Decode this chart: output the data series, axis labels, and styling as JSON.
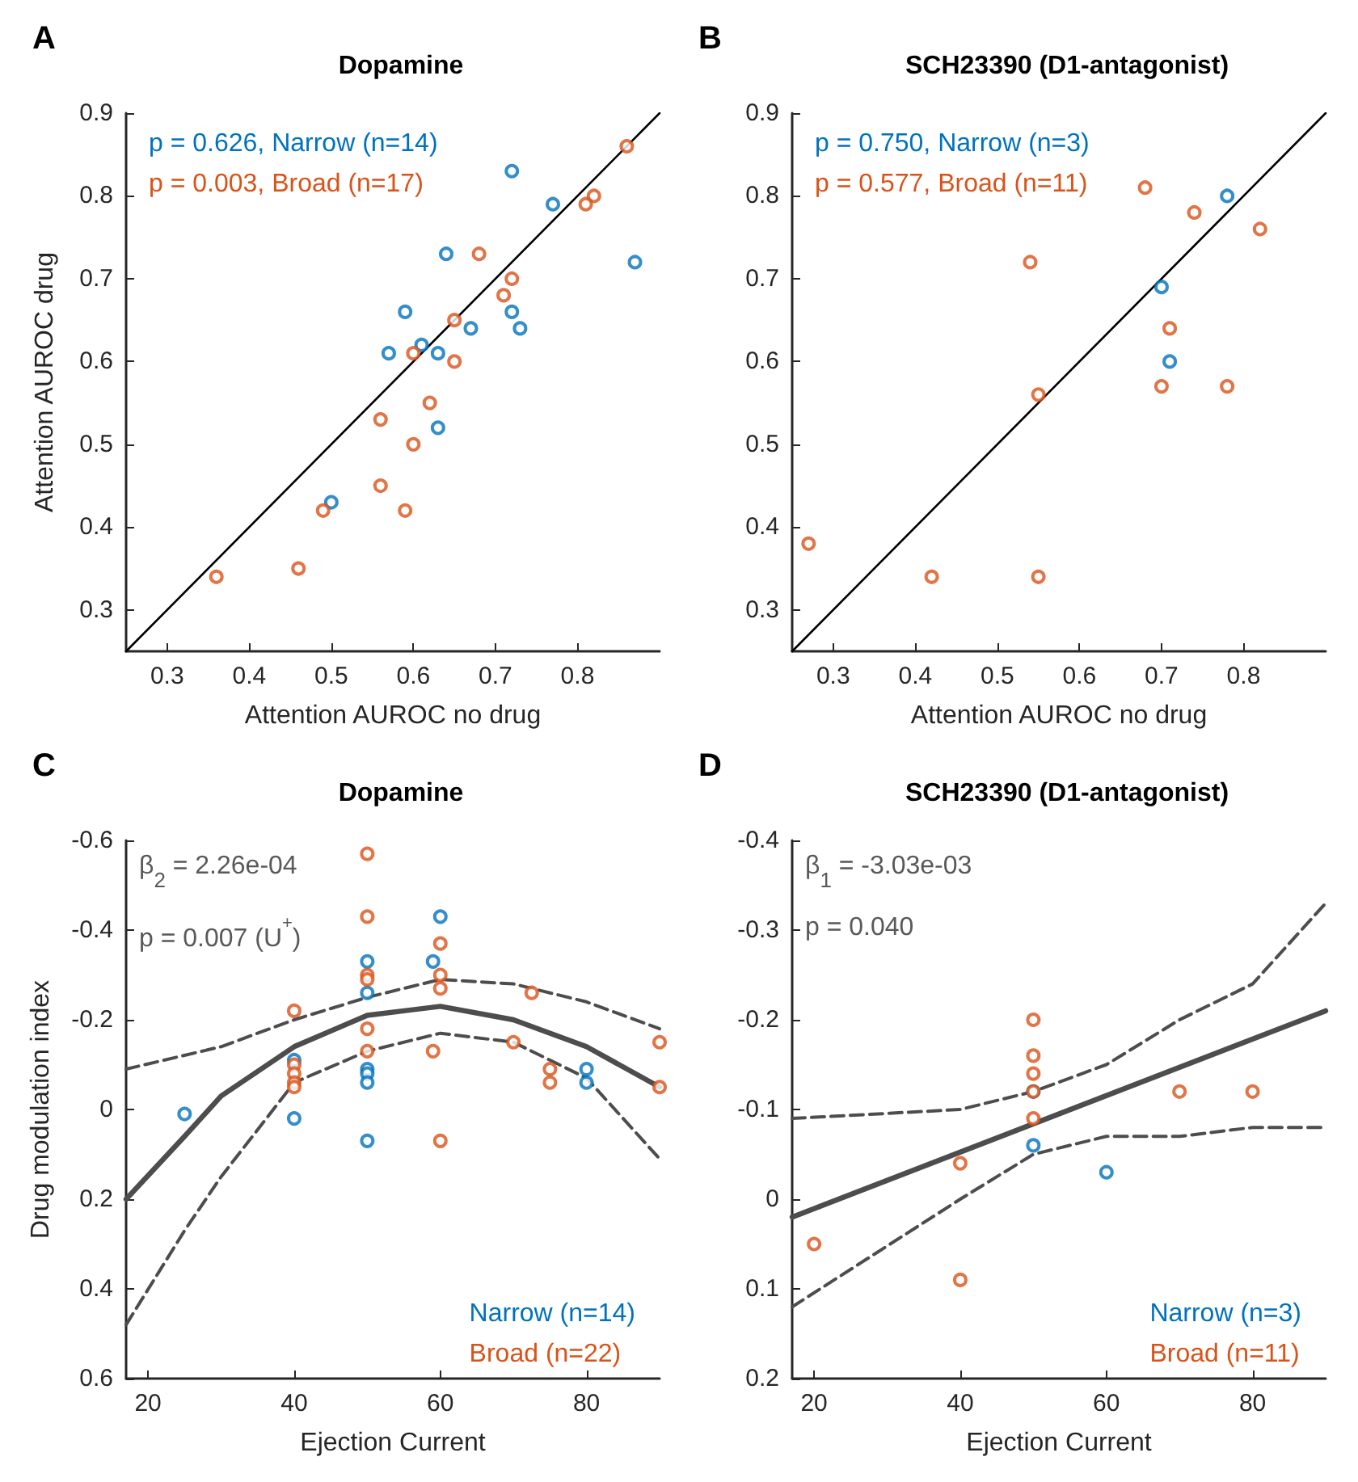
{
  "chart_data": [
    {
      "type": "scatter",
      "title": "Dopamine",
      "xlabel": "Attention AUROC no drug",
      "ylabel": "Attention AUROC drug",
      "annotations": [
        "A"
      ],
      "xlim": [
        0.25,
        0.9
      ],
      "ylim": [
        0.25,
        0.9
      ],
      "xticks": [
        0.3,
        0.4,
        0.5,
        0.6,
        0.7,
        0.8
      ],
      "yticks": [
        0.3,
        0.4,
        0.5,
        0.6,
        0.7,
        0.8,
        0.9
      ],
      "marker": "circle",
      "legend": "top left",
      "grid": false,
      "series": [
        {
          "name": "p = 0.626, Narrow (n=14)",
          "color": "#0072bd",
          "x": [
            0.72,
            0.77,
            0.64,
            0.87,
            0.59,
            0.72,
            0.73,
            0.67,
            0.61,
            0.63,
            0.57,
            0.63,
            0.5
          ],
          "values": [
            0.83,
            0.79,
            0.73,
            0.72,
            0.66,
            0.66,
            0.64,
            0.64,
            0.62,
            0.61,
            0.61,
            0.52,
            0.43
          ]
        },
        {
          "name": "p = 0.003, Broad (n=17)",
          "color": "#d95319",
          "x": [
            0.86,
            0.82,
            0.81,
            0.68,
            0.72,
            0.71,
            0.65,
            0.6,
            0.65,
            0.62,
            0.56,
            0.6,
            0.56,
            0.59,
            0.49,
            0.46,
            0.36
          ],
          "values": [
            0.86,
            0.8,
            0.79,
            0.73,
            0.7,
            0.68,
            0.65,
            0.61,
            0.6,
            0.55,
            0.53,
            0.5,
            0.45,
            0.42,
            0.42,
            0.35,
            0.34
          ]
        },
        {
          "type": "line",
          "color": "#000000",
          "line_style": "solid",
          "marker": "none",
          "x": [
            0.25,
            0.9
          ],
          "values": [
            0.25,
            0.9
          ]
        }
      ]
    },
    {
      "type": "scatter",
      "title": "SCH23390 (D1-antagonist)",
      "xlabel": "Attention AUROC no drug",
      "annotations": [
        "B"
      ],
      "xlim": [
        0.25,
        0.9
      ],
      "ylim": [
        0.25,
        0.9
      ],
      "xticks": [
        0.3,
        0.4,
        0.5,
        0.6,
        0.7,
        0.8
      ],
      "yticks": [
        0.3,
        0.4,
        0.5,
        0.6,
        0.7,
        0.8,
        0.9
      ],
      "marker": "circle",
      "legend": "top left",
      "grid": false,
      "series": [
        {
          "name": "p = 0.750, Narrow (n=3)",
          "color": "#0072bd",
          "x": [
            0.78,
            0.7,
            0.71
          ],
          "values": [
            0.8,
            0.69,
            0.6
          ]
        },
        {
          "name": "p = 0.577, Broad (n=11)",
          "color": "#d95319",
          "x": [
            0.68,
            0.74,
            0.82,
            0.54,
            0.71,
            0.7,
            0.78,
            0.55,
            0.27,
            0.42,
            0.55
          ],
          "values": [
            0.81,
            0.78,
            0.76,
            0.72,
            0.64,
            0.57,
            0.57,
            0.56,
            0.38,
            0.34,
            0.34
          ]
        },
        {
          "type": "line",
          "color": "#000000",
          "line_style": "solid",
          "marker": "none",
          "x": [
            0.25,
            0.9
          ],
          "values": [
            0.25,
            0.9
          ]
        }
      ]
    },
    {
      "type": "scatter",
      "title": "Dopamine",
      "xlabel": "Ejection Current",
      "ylabel": "Drug modulation index",
      "annotations": [
        "C",
        "β$_{2}$ = 2.26e-04",
        "p = 0.007 (U$^{+}$)"
      ],
      "xlim": [
        17,
        90
      ],
      "ylim": [
        0.6,
        -0.6
      ],
      "xticks": [
        20,
        40,
        60,
        80
      ],
      "yticks": [
        -0.6,
        -0.4,
        -0.2,
        0,
        0.2,
        0.4,
        0.6
      ],
      "marker": "circle",
      "legend": "bottom right",
      "grid": false,
      "series": [
        {
          "name": "Narrow (n=14)",
          "color": "#0072bd",
          "x": [
            25,
            40,
            40,
            50,
            50,
            50,
            50,
            50,
            50,
            60,
            59,
            80,
            80
          ],
          "values": [
            0.01,
            0.02,
            -0.11,
            -0.33,
            -0.26,
            -0.09,
            -0.08,
            -0.06,
            0.07,
            -0.43,
            -0.33,
            -0.09,
            -0.06
          ]
        },
        {
          "name": "Broad (n=22)",
          "color": "#d95319",
          "x": [
            50,
            50,
            50,
            50,
            50,
            50,
            40,
            40,
            40,
            40,
            40,
            60,
            60,
            60,
            59,
            60,
            72.5,
            70,
            75,
            75,
            90,
            90
          ],
          "values": [
            -0.57,
            -0.43,
            -0.3,
            -0.29,
            -0.18,
            -0.13,
            -0.22,
            -0.1,
            -0.08,
            -0.06,
            -0.05,
            -0.37,
            -0.3,
            -0.27,
            -0.13,
            0.07,
            -0.26,
            -0.15,
            -0.09,
            -0.06,
            -0.15,
            -0.05
          ]
        },
        {
          "type": "line",
          "color": "#4d4d4d",
          "line_style": "solid",
          "marker": "none",
          "x": [
            17,
            25,
            30,
            40,
            50,
            60,
            70,
            80,
            90
          ],
          "values": [
            0.2,
            0.06,
            -0.03,
            -0.14,
            -0.21,
            -0.23,
            -0.2,
            -0.14,
            -0.05
          ]
        },
        {
          "type": "line",
          "color": "#4d4d4d",
          "line_style": "dashed",
          "marker": "none",
          "x": [
            17,
            30,
            40,
            50,
            60,
            70,
            80,
            90
          ],
          "values": [
            -0.09,
            -0.14,
            -0.2,
            -0.25,
            -0.29,
            -0.28,
            -0.24,
            -0.18
          ]
        },
        {
          "type": "line",
          "color": "#4d4d4d",
          "line_style": "dashed",
          "marker": "none",
          "x": [
            17,
            25,
            30,
            40,
            50,
            60,
            70,
            80,
            90
          ],
          "values": [
            0.48,
            0.27,
            0.15,
            -0.06,
            -0.13,
            -0.17,
            -0.15,
            -0.07,
            0.11
          ]
        }
      ]
    },
    {
      "type": "scatter",
      "title": "SCH23390 (D1-antagonist)",
      "xlabel": "Ejection Current",
      "annotations": [
        "D",
        "β$_{1}$ = -3.03e-03",
        "p = 0.040"
      ],
      "xlim": [
        17,
        90
      ],
      "ylim": [
        0.2,
        -0.4
      ],
      "xticks": [
        20,
        40,
        60,
        80
      ],
      "yticks": [
        -0.4,
        -0.3,
        -0.2,
        -0.1,
        0,
        0.1,
        0.2
      ],
      "marker": "circle",
      "legend": "bottom right",
      "grid": false,
      "series": [
        {
          "name": "Narrow (n=3)",
          "color": "#0072bd",
          "x": [
            50,
            50,
            60
          ],
          "values": [
            -0.12,
            -0.06,
            -0.03
          ]
        },
        {
          "name": "Broad (n=11)",
          "color": "#d95319",
          "x": [
            20,
            40,
            40,
            50,
            50,
            50,
            50,
            50,
            70,
            80
          ],
          "values": [
            0.05,
            -0.04,
            0.09,
            -0.2,
            -0.16,
            -0.14,
            -0.12,
            -0.09,
            -0.12,
            -0.12
          ]
        },
        {
          "type": "line",
          "color": "#4d4d4d",
          "line_style": "solid",
          "marker": "none",
          "x": [
            17,
            90
          ],
          "values": [
            0.02,
            -0.21
          ]
        },
        {
          "type": "line",
          "color": "#4d4d4d",
          "line_style": "dashed",
          "marker": "none",
          "x": [
            17,
            40,
            50,
            60,
            70,
            80,
            90
          ],
          "values": [
            -0.09,
            -0.1,
            -0.12,
            -0.15,
            -0.2,
            -0.24,
            -0.33
          ]
        },
        {
          "type": "line",
          "color": "#4d4d4d",
          "line_style": "dashed",
          "marker": "none",
          "x": [
            17,
            40,
            50,
            60,
            70,
            80,
            90
          ],
          "values": [
            0.12,
            0,
            -0.05,
            -0.07,
            -0.07,
            -0.08,
            -0.08
          ]
        }
      ]
    }
  ]
}
